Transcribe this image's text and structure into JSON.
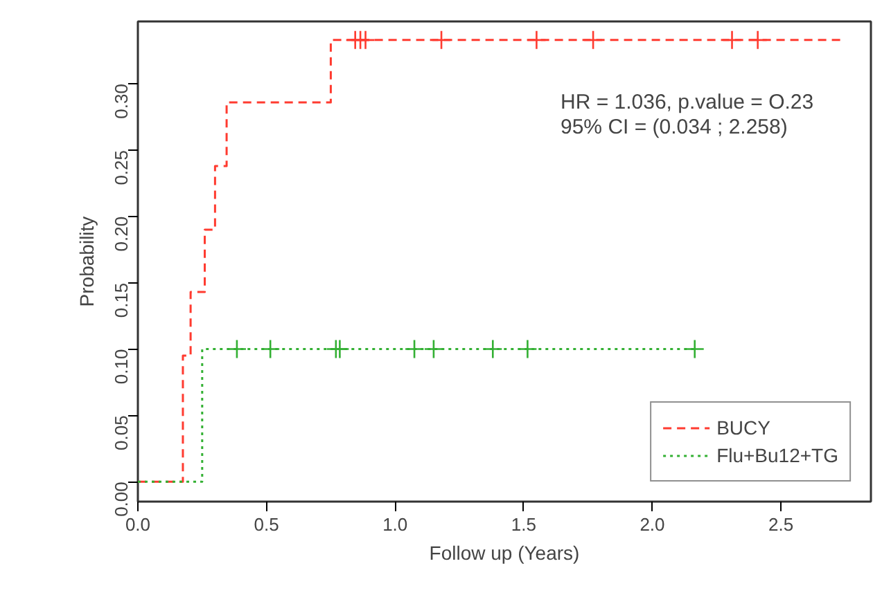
{
  "chart_data": {
    "type": "step",
    "xlabel": "Follow up (Years)",
    "ylabel": "Probability",
    "annotations": [
      "HR = 1.036, p.value = O.23",
      "95% CI = (0.034 ; 2.258)"
    ],
    "series": [
      {
        "name": "BUCY",
        "color": "#ff3b30",
        "line_style": "dashed",
        "x": [
          0,
          0.175,
          0.205,
          0.26,
          0.3,
          0.345,
          0.75,
          2.74
        ],
        "values": [
          0,
          0.095,
          0.143,
          0.19,
          0.238,
          0.286,
          0.333,
          0.333
        ]
      },
      {
        "name": "Flu+Bu12+TG",
        "color": "#33b033",
        "line_style": "dotted",
        "x": [
          0,
          0.25,
          2.17
        ],
        "values": [
          0,
          0.1,
          0.1
        ]
      },
      {
        "type": "scatter",
        "marker": "cross",
        "color": "#ff3b30",
        "x": [
          0.845,
          0.865,
          0.885,
          1.18,
          1.55,
          1.77,
          2.31,
          2.41
        ],
        "values": [
          0.333,
          0.333,
          0.333,
          0.333,
          0.333,
          0.333,
          0.333,
          0.333
        ]
      },
      {
        "type": "scatter",
        "marker": "cross",
        "color": "#33b033",
        "x": [
          0.385,
          0.515,
          0.77,
          0.785,
          1.075,
          1.15,
          1.38,
          1.515,
          2.165
        ],
        "values": [
          0.1,
          0.1,
          0.1,
          0.1,
          0.1,
          0.1,
          0.1,
          0.1,
          0.1
        ]
      }
    ],
    "xlim": [
      0,
      2.85
    ],
    "ylim": [
      -0.015,
      0.347
    ],
    "xticks": [
      {
        "value": 0,
        "label": "0.0"
      },
      {
        "value": 0.5,
        "label": "0.5"
      },
      {
        "value": 1,
        "label": "1.0"
      },
      1.5,
      {
        "value": 2,
        "label": "2.0"
      },
      2.5
    ],
    "yticks": [
      {
        "value": 0,
        "label": "0.00"
      },
      0.05,
      {
        "value": 0.1,
        "label": "0.10"
      },
      0.15,
      {
        "value": 0.2,
        "label": "0.20"
      },
      0.25,
      {
        "value": 0.3,
        "label": "0.30"
      }
    ],
    "grid": false,
    "legend": "bottom right"
  }
}
